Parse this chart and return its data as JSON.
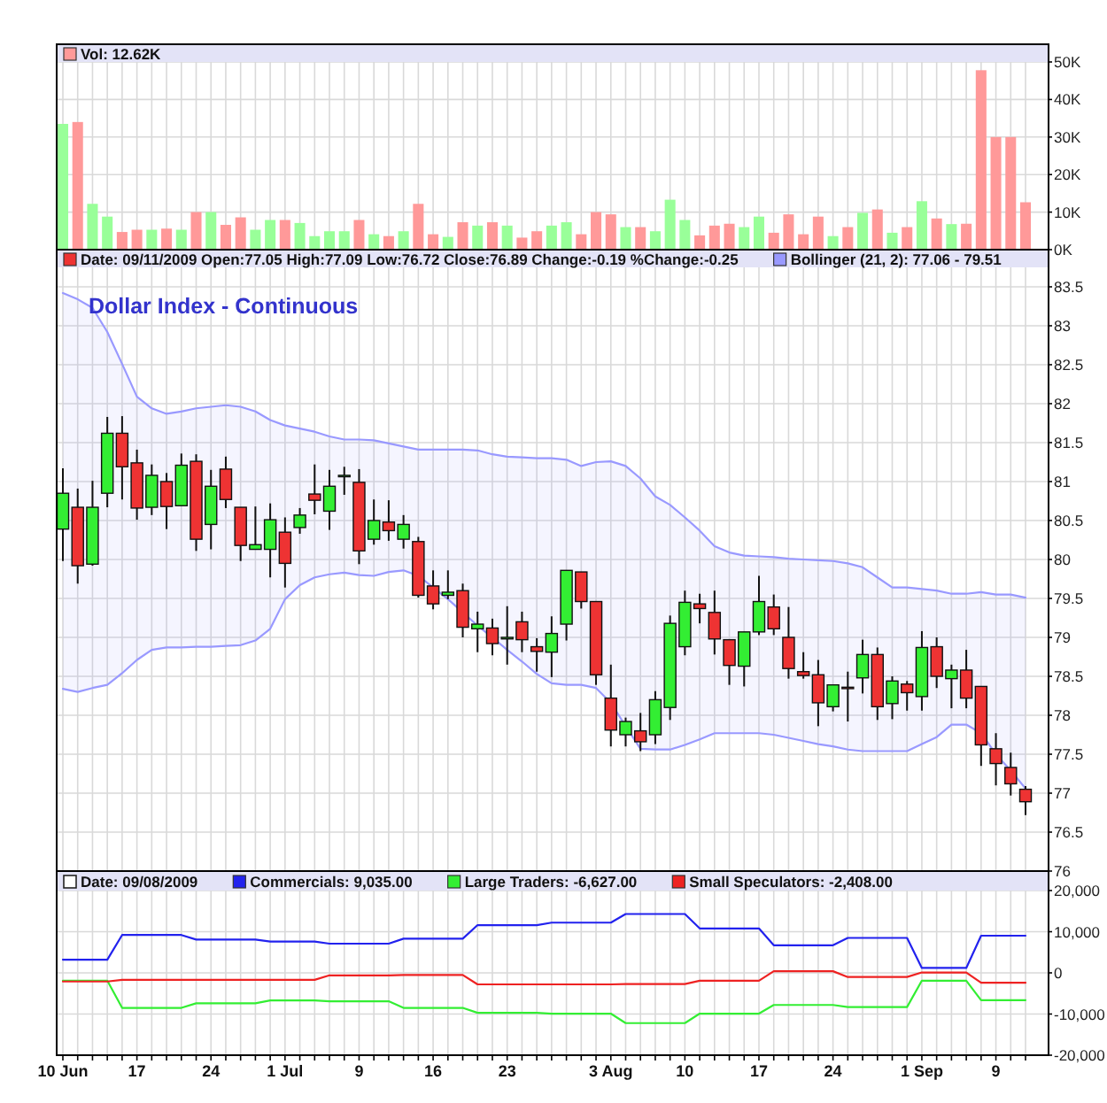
{
  "chart_data": [
    {
      "type": "bar",
      "categories": [
        null,
        null,
        null,
        null,
        null,
        null,
        null,
        null,
        null,
        null,
        null,
        null,
        null,
        null,
        null,
        null,
        null,
        null,
        null,
        null,
        null,
        null,
        null,
        null,
        null,
        null,
        null,
        null,
        null,
        null,
        null,
        null,
        null,
        null,
        null,
        null,
        null,
        null,
        null,
        null,
        null,
        null,
        null,
        null,
        null,
        null,
        null,
        null,
        null,
        null,
        null,
        null,
        null,
        null,
        null,
        null,
        null,
        null,
        null,
        null,
        null,
        null,
        null,
        null,
        null,
        null
      ],
      "series": [
        {
          "name": "Vol: 12.62K",
          "color": "#ff9999",
          "values": [
            33500,
            34000,
            12200,
            8800,
            4700,
            5300,
            5300,
            5600,
            5300,
            10000,
            10000,
            6600,
            8600,
            5300,
            7900,
            7900,
            7100,
            3600,
            4900,
            4900,
            7900,
            4100,
            3600,
            4900,
            12200,
            4100,
            3400,
            7300,
            6400,
            7300,
            6400,
            3200,
            4900,
            6400,
            7300,
            4100,
            10000,
            9400,
            6000,
            6000,
            4900,
            13300,
            7900,
            3800,
            6400,
            6900,
            6000,
            8800,
            4500,
            9400,
            4100,
            8800,
            3600,
            6000,
            9800,
            10700,
            4500,
            6000,
            12900,
            8300,
            6800,
            6900,
            47800,
            30000,
            30000,
            12620
          ],
          "colors": [
            "#99ff99",
            "#ff9999",
            "#99ff99",
            "#99ff99",
            "#ff9999",
            "#ff9999",
            "#99ff99",
            "#ff9999",
            "#99ff99",
            "#ff9999",
            "#99ff99",
            "#ff9999",
            "#ff9999",
            "#99ff99",
            "#99ff99",
            "#ff9999",
            "#99ff99",
            "#99ff99",
            "#99ff99",
            "#99ff99",
            "#ff9999",
            "#99ff99",
            "#ff9999",
            "#99ff99",
            "#ff9999",
            "#ff9999",
            "#99ff99",
            "#ff9999",
            "#99ff99",
            "#ff9999",
            "#99ff99",
            "#ff9999",
            "#ff9999",
            "#99ff99",
            "#99ff99",
            "#ff9999",
            "#ff9999",
            "#ff9999",
            "#99ff99",
            "#ff9999",
            "#99ff99",
            "#99ff99",
            "#99ff99",
            "#ff9999",
            "#ff9999",
            "#ff9999",
            "#99ff99",
            "#99ff99",
            "#ff9999",
            "#ff9999",
            "#ff9999",
            "#ff9999",
            "#99ff99",
            "#ff9999",
            "#99ff99",
            "#ff9999",
            "#99ff99",
            "#ff9999",
            "#99ff99",
            "#ff9999",
            "#99ff99",
            "#ff9999",
            "#ff9999",
            "#ff9999",
            "#ff9999",
            "#ff9999"
          ]
        }
      ],
      "ylim": [
        0,
        50000
      ],
      "yticks": [
        {
          "value": 0,
          "label": "0K"
        },
        {
          "value": 10000,
          "label": "10K"
        },
        {
          "value": 20000,
          "label": "20K"
        },
        {
          "value": 30000,
          "label": "30K"
        },
        {
          "value": 40000,
          "label": "40K"
        },
        {
          "value": 50000,
          "label": "50K"
        }
      ],
      "grid": true,
      "legend": "top",
      "tick_labels": "y"
    },
    {
      "type": "candlestick",
      "title": "Dollar Index - Continuous",
      "categories": [
        null,
        null,
        null,
        null,
        null,
        null,
        null,
        null,
        null,
        null,
        null,
        null,
        null,
        null,
        null,
        null,
        null,
        null,
        null,
        null,
        null,
        null,
        null,
        null,
        null,
        null,
        null,
        null,
        null,
        null,
        null,
        null,
        null,
        null,
        null,
        null,
        null,
        null,
        null,
        null,
        null,
        null,
        null,
        null,
        null,
        null,
        null,
        null,
        null,
        null,
        null,
        null,
        null,
        null,
        null,
        null,
        null,
        null,
        null,
        null,
        null,
        null,
        null,
        null,
        null,
        null
      ],
      "series": [
        {
          "name": "Date: 09/11/2009 Open:77.05 High:77.09 Low:76.72 Close:76.89 Change:-0.19 %Change:-0.25",
          "color": "#ee3333",
          "ohlc": [
            [
              80.39,
              81.17,
              79.98,
              80.85
            ],
            [
              80.67,
              80.91,
              79.69,
              79.92
            ],
            [
              79.94,
              81.01,
              79.92,
              80.67
            ],
            [
              80.85,
              81.83,
              80.67,
              81.62
            ],
            [
              81.62,
              81.84,
              80.77,
              81.19
            ],
            [
              81.24,
              81.41,
              80.51,
              80.66
            ],
            [
              80.67,
              81.22,
              80.57,
              81.08
            ],
            [
              81.0,
              81.11,
              80.39,
              80.68
            ],
            [
              80.69,
              81.36,
              80.69,
              81.21
            ],
            [
              81.26,
              81.35,
              80.11,
              80.26
            ],
            [
              80.45,
              81.15,
              80.13,
              80.94
            ],
            [
              81.16,
              81.32,
              80.66,
              80.77
            ],
            [
              80.67,
              80.67,
              79.98,
              80.18
            ],
            [
              80.13,
              80.68,
              80.13,
              80.19
            ],
            [
              80.13,
              80.72,
              79.77,
              80.51
            ],
            [
              80.35,
              80.54,
              79.64,
              79.95
            ],
            [
              80.41,
              80.66,
              80.33,
              80.57
            ],
            [
              80.84,
              81.22,
              80.58,
              80.76
            ],
            [
              80.62,
              81.15,
              80.38,
              80.94
            ],
            [
              81.08,
              81.19,
              80.83,
              81.08
            ],
            [
              80.99,
              81.16,
              79.94,
              80.11
            ],
            [
              80.26,
              80.77,
              80.19,
              80.5
            ],
            [
              80.48,
              80.76,
              80.24,
              80.37
            ],
            [
              80.26,
              80.57,
              80.14,
              80.45
            ],
            [
              80.23,
              80.29,
              79.51,
              79.54
            ],
            [
              79.66,
              79.86,
              79.36,
              79.43
            ],
            [
              79.54,
              79.86,
              79.49,
              79.58
            ],
            [
              79.6,
              79.69,
              79.0,
              79.13
            ],
            [
              79.11,
              79.33,
              78.81,
              79.17
            ],
            [
              79.12,
              79.24,
              78.77,
              78.92
            ],
            [
              78.98,
              79.4,
              78.65,
              79.0
            ],
            [
              79.2,
              79.33,
              78.81,
              78.97
            ],
            [
              78.88,
              78.99,
              78.56,
              78.82
            ],
            [
              78.81,
              79.27,
              78.49,
              79.05
            ],
            [
              79.17,
              79.86,
              78.96,
              79.86
            ],
            [
              79.84,
              79.84,
              79.37,
              79.46
            ],
            [
              79.46,
              79.46,
              78.39,
              78.52
            ],
            [
              78.22,
              78.65,
              77.6,
              77.81
            ],
            [
              77.75,
              77.97,
              77.6,
              77.92
            ],
            [
              77.8,
              78.03,
              77.54,
              77.66
            ],
            [
              77.75,
              78.31,
              77.63,
              78.2
            ],
            [
              78.1,
              79.28,
              77.94,
              79.18
            ],
            [
              78.88,
              79.6,
              78.77,
              79.45
            ],
            [
              79.43,
              79.56,
              79.18,
              79.37
            ],
            [
              79.32,
              79.6,
              78.78,
              78.98
            ],
            [
              78.97,
              78.97,
              78.39,
              78.64
            ],
            [
              78.63,
              79.07,
              78.37,
              79.07
            ],
            [
              79.07,
              79.79,
              79.03,
              79.46
            ],
            [
              79.39,
              79.55,
              79.03,
              79.11
            ],
            [
              79.0,
              79.39,
              78.47,
              78.6
            ],
            [
              78.56,
              78.81,
              78.47,
              78.51
            ],
            [
              78.52,
              78.71,
              77.86,
              78.16
            ],
            [
              78.11,
              78.39,
              78.05,
              78.39
            ],
            [
              78.36,
              78.56,
              77.92,
              78.35
            ],
            [
              78.48,
              78.97,
              78.28,
              78.78
            ],
            [
              78.78,
              78.87,
              77.94,
              78.11
            ],
            [
              78.15,
              78.5,
              77.95,
              78.44
            ],
            [
              78.4,
              78.44,
              78.06,
              78.29
            ],
            [
              78.24,
              79.08,
              78.06,
              78.87
            ],
            [
              78.88,
              79.0,
              78.35,
              78.5
            ],
            [
              78.47,
              78.65,
              78.09,
              78.58
            ],
            [
              78.58,
              78.84,
              78.09,
              78.22
            ],
            [
              78.37,
              78.37,
              77.35,
              77.62
            ],
            [
              77.57,
              77.77,
              77.1,
              77.38
            ],
            [
              77.33,
              77.52,
              76.97,
              77.12
            ],
            [
              77.05,
              77.09,
              76.72,
              76.89
            ]
          ],
          "colors": [
            "#33ee33",
            "#ee3333",
            "#33ee33",
            "#33ee33",
            "#ee3333",
            "#ee3333",
            "#33ee33",
            "#ee3333",
            "#33ee33",
            "#ee3333",
            "#33ee33",
            "#ee3333",
            "#ee3333",
            "#33ee33",
            "#33ee33",
            "#ee3333",
            "#33ee33",
            "#ee3333",
            "#33ee33",
            "#33ee33",
            "#ee3333",
            "#33ee33",
            "#ee3333",
            "#33ee33",
            "#ee3333",
            "#ee3333",
            "#33ee33",
            "#ee3333",
            "#33ee33",
            "#ee3333",
            "#33ee33",
            "#ee3333",
            "#ee3333",
            "#33ee33",
            "#33ee33",
            "#ee3333",
            "#ee3333",
            "#ee3333",
            "#33ee33",
            "#ee3333",
            "#33ee33",
            "#33ee33",
            "#33ee33",
            "#ee3333",
            "#ee3333",
            "#ee3333",
            "#33ee33",
            "#33ee33",
            "#ee3333",
            "#ee3333",
            "#ee3333",
            "#ee3333",
            "#33ee33",
            "#ee3333",
            "#33ee33",
            "#ee3333",
            "#33ee33",
            "#ee3333",
            "#33ee33",
            "#ee3333",
            "#33ee33",
            "#ee3333",
            "#ee3333",
            "#ee3333",
            "#ee3333",
            "#ee3333"
          ]
        },
        {
          "name": "Bollinger (21, 2): 77.06 - 79.51",
          "type": "line",
          "color": "#9999ff",
          "values": [
            83.42,
            83.34,
            83.23,
            82.92,
            82.51,
            82.09,
            81.94,
            81.87,
            81.9,
            81.94,
            81.96,
            81.98,
            81.96,
            81.9,
            81.79,
            81.72,
            81.68,
            81.64,
            81.58,
            81.54,
            81.54,
            81.53,
            81.49,
            81.45,
            81.41,
            81.41,
            81.41,
            81.41,
            81.4,
            81.35,
            81.32,
            81.31,
            81.3,
            81.3,
            81.28,
            81.2,
            81.25,
            81.26,
            81.2,
            81.04,
            80.81,
            80.7,
            80.54,
            80.37,
            80.17,
            80.09,
            80.05,
            80.04,
            80.03,
            80.01,
            80.0,
            79.99,
            79.98,
            79.95,
            79.9,
            79.77,
            79.64,
            79.64,
            79.62,
            79.6,
            79.56,
            79.56,
            79.58,
            79.55,
            79.55,
            79.51
          ],
          "lower": [
            78.34,
            78.3,
            78.35,
            78.39,
            78.54,
            78.71,
            78.84,
            78.87,
            78.87,
            78.88,
            78.88,
            78.89,
            78.9,
            78.96,
            79.11,
            79.49,
            79.67,
            79.77,
            79.81,
            79.83,
            79.8,
            79.79,
            79.84,
            79.86,
            79.79,
            79.64,
            79.49,
            79.32,
            79.15,
            79.0,
            78.84,
            78.69,
            78.53,
            78.41,
            78.39,
            78.39,
            78.35,
            78.16,
            77.86,
            77.57,
            77.56,
            77.56,
            77.62,
            77.69,
            77.77,
            77.77,
            77.77,
            77.77,
            77.75,
            77.71,
            77.67,
            77.63,
            77.6,
            77.56,
            77.54,
            77.54,
            77.54,
            77.54,
            77.63,
            77.72,
            77.88,
            77.88,
            77.77,
            77.5,
            77.29,
            77.06
          ],
          "upper": [
            83.42,
            83.34,
            83.23,
            82.92,
            82.51,
            82.09,
            81.94,
            81.87,
            81.9,
            81.94,
            81.96,
            81.98,
            81.96,
            81.9,
            81.79,
            81.72,
            81.68,
            81.64,
            81.58,
            81.54,
            81.54,
            81.53,
            81.49,
            81.45,
            81.41,
            81.41,
            81.41,
            81.41,
            81.4,
            81.35,
            81.32,
            81.31,
            81.3,
            81.3,
            81.28,
            81.2,
            81.25,
            81.26,
            81.2,
            81.04,
            80.81,
            80.7,
            80.54,
            80.37,
            80.17,
            80.09,
            80.05,
            80.04,
            80.03,
            80.01,
            80.0,
            79.99,
            79.98,
            79.95,
            79.9,
            79.77,
            79.64,
            79.64,
            79.62,
            79.6,
            79.56,
            79.56,
            79.58,
            79.55,
            79.55,
            79.51
          ]
        },
        {
          "type": "line",
          "color": "#9999ff",
          "values": [
            78.34,
            78.3,
            78.35,
            78.39,
            78.54,
            78.71,
            78.84,
            78.87,
            78.87,
            78.88,
            78.88,
            78.89,
            78.9,
            78.96,
            79.11,
            79.49,
            79.67,
            79.77,
            79.81,
            79.83,
            79.8,
            79.79,
            79.84,
            79.86,
            79.79,
            79.64,
            79.49,
            79.32,
            79.15,
            79.0,
            78.84,
            78.69,
            78.53,
            78.41,
            78.39,
            78.39,
            78.35,
            78.16,
            77.86,
            77.57,
            77.56,
            77.56,
            77.62,
            77.69,
            77.77,
            77.77,
            77.77,
            77.77,
            77.75,
            77.71,
            77.67,
            77.63,
            77.6,
            77.56,
            77.54,
            77.54,
            77.54,
            77.54,
            77.63,
            77.72,
            77.88,
            77.88,
            77.77,
            77.5,
            77.29,
            77.06
          ]
        }
      ],
      "ylim": [
        76,
        83.75
      ],
      "yticks": [
        76,
        76.5,
        77,
        77.5,
        78,
        78.5,
        79,
        79.5,
        80,
        80.5,
        81,
        81.5,
        82,
        82.5,
        83,
        83.5
      ],
      "grid": true,
      "legend": "top",
      "tick_labels": "y"
    },
    {
      "type": "line",
      "categories": [
        "10 Jun",
        null,
        null,
        null,
        null,
        "17",
        null,
        null,
        null,
        null,
        "24",
        null,
        null,
        null,
        null,
        "1 Jul",
        null,
        null,
        null,
        null,
        "9",
        null,
        null,
        null,
        null,
        "16",
        null,
        null,
        null,
        null,
        "23",
        null,
        null,
        null,
        null,
        null,
        null,
        "3 Aug",
        null,
        null,
        null,
        null,
        "10",
        null,
        null,
        null,
        null,
        "17",
        null,
        null,
        null,
        null,
        "24",
        null,
        null,
        null,
        null,
        null,
        "1 Sep",
        null,
        null,
        null,
        null,
        "9",
        null,
        null
      ],
      "series": [
        {
          "name": "Commercials: 9,035.00",
          "color": "#2222ee",
          "values": [
            3200,
            3200,
            3200,
            3200,
            9200,
            9200,
            9200,
            9200,
            9200,
            8100,
            8100,
            8100,
            8100,
            8100,
            7600,
            7600,
            7600,
            7600,
            7100,
            7100,
            7100,
            7100,
            7100,
            8300,
            8300,
            8300,
            8300,
            8300,
            11600,
            11600,
            11600,
            11600,
            11600,
            12200,
            12200,
            12200,
            12200,
            12200,
            14300,
            14300,
            14300,
            14300,
            14300,
            10800,
            10800,
            10800,
            10800,
            10800,
            6700,
            6700,
            6700,
            6700,
            6700,
            8500,
            8500,
            8500,
            8500,
            8500,
            1200,
            1200,
            1200,
            1200,
            9035,
            9035,
            9035,
            9035
          ]
        },
        {
          "name": "Large Traders: -6,627.00",
          "color": "#33ee33",
          "values": [
            -1900,
            -1900,
            -1900,
            -1900,
            -8500,
            -8500,
            -8500,
            -8500,
            -8500,
            -7400,
            -7400,
            -7400,
            -7400,
            -7400,
            -6700,
            -6700,
            -6700,
            -6700,
            -6900,
            -6900,
            -6900,
            -6900,
            -6900,
            -8500,
            -8500,
            -8500,
            -8500,
            -8500,
            -9700,
            -9700,
            -9700,
            -9700,
            -9700,
            -9900,
            -9900,
            -9900,
            -9900,
            -9900,
            -12200,
            -12200,
            -12200,
            -12200,
            -12200,
            -9900,
            -9900,
            -9900,
            -9900,
            -9900,
            -7800,
            -7800,
            -7800,
            -7800,
            -7800,
            -8300,
            -8300,
            -8300,
            -8300,
            -8300,
            -1900,
            -1900,
            -1900,
            -1900,
            -6627,
            -6627,
            -6627,
            -6627
          ]
        },
        {
          "name": "Small Speculators: -2,408.00",
          "color": "#ee2222",
          "values": [
            -2100,
            -2100,
            -2100,
            -2100,
            -1700,
            -1700,
            -1700,
            -1700,
            -1700,
            -1700,
            -1700,
            -1700,
            -1700,
            -1700,
            -1700,
            -1700,
            -1700,
            -1700,
            -600,
            -600,
            -600,
            -600,
            -600,
            -500,
            -500,
            -500,
            -500,
            -500,
            -2800,
            -2800,
            -2800,
            -2800,
            -2800,
            -2800,
            -2800,
            -2800,
            -2800,
            -2800,
            -2700,
            -2700,
            -2700,
            -2700,
            -2700,
            -1900,
            -1900,
            -1900,
            -1900,
            -1900,
            400,
            400,
            400,
            400,
            400,
            -1000,
            -1000,
            -1000,
            -1000,
            -1000,
            100,
            100,
            100,
            100,
            -2408,
            -2408,
            -2408,
            -2408
          ]
        }
      ],
      "ylim": [
        -20000,
        20000
      ],
      "yticks": [
        {
          "value": -20000,
          "label": "-20,000"
        },
        {
          "value": -10000,
          "label": "-10,000"
        },
        0,
        {
          "value": 10000,
          "label": "10,000"
        },
        {
          "value": 20000,
          "label": "20,000"
        }
      ],
      "grid": true,
      "legend": "top",
      "annotations": [
        "Date: 09/08/2009"
      ]
    }
  ]
}
